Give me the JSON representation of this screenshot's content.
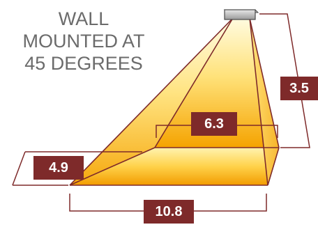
{
  "title": {
    "lines": [
      "WALL",
      "MOUNTED AT",
      "45 DEGREES"
    ]
  },
  "dimensions": {
    "height": "3.5",
    "far_width": "6.3",
    "depth": "4.9",
    "floor_width": "10.8"
  },
  "colors": {
    "label_bg": "#7e2a2a",
    "title_text": "#6b6b6b",
    "cone_top": "#fff6c4",
    "cone_bottom": "#f5a800",
    "line": "#7e2a2a"
  }
}
